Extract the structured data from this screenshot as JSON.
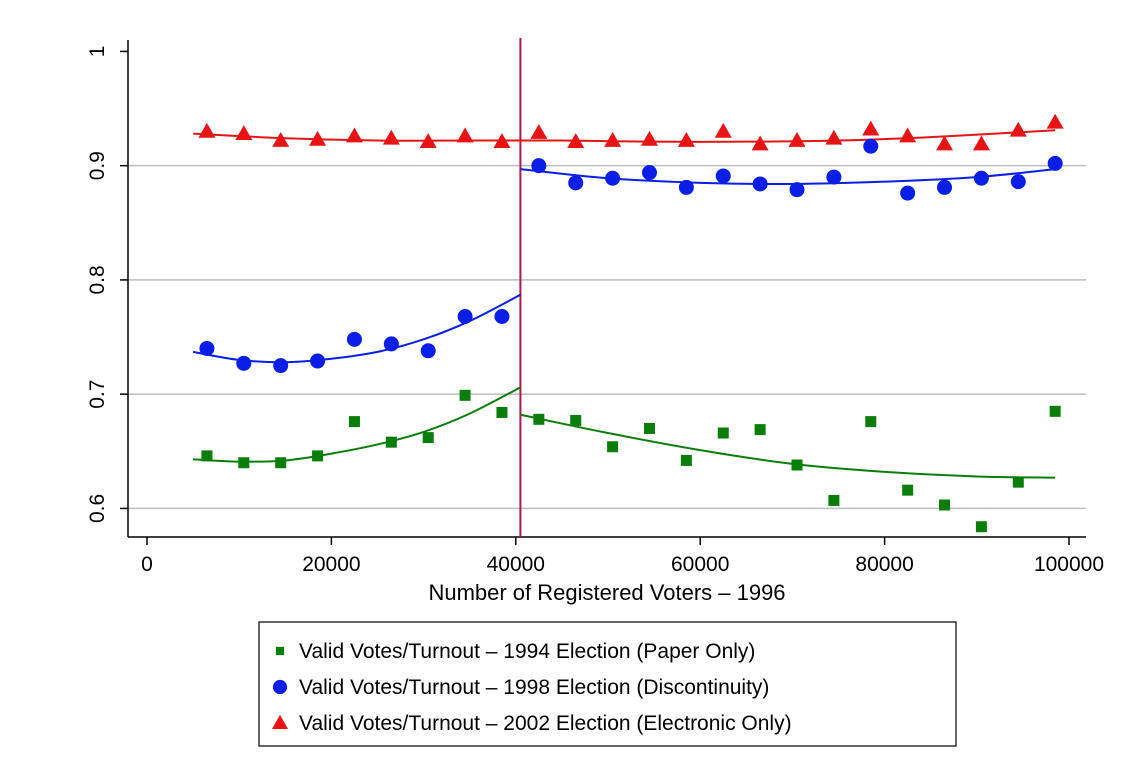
{
  "chart_data": {
    "type": "scatter",
    "title": "",
    "xlabel": "Number of Registered Voters – 1996",
    "ylabel": "",
    "xlim": [
      0,
      100000
    ],
    "ylim": [
      0.575,
      1.01
    ],
    "x_ticks": [
      0,
      20000,
      40000,
      60000,
      80000,
      100000
    ],
    "x_tick_labels": [
      "0",
      "20000",
      "40000",
      "60000",
      "80000",
      "100000"
    ],
    "y_ticks": [
      0.6,
      0.7,
      0.8,
      0.9,
      1
    ],
    "y_tick_labels": [
      "0.6",
      "0.7",
      "0.8",
      "0.9",
      "1"
    ],
    "grid": "horizontal",
    "cutoff_x": 40500,
    "legend_position": "bottom",
    "series": [
      {
        "name": "Valid Votes/Turnout – 1994 Election (Paper Only)",
        "color": "#0a7d0a",
        "marker": "square",
        "x": [
          6500,
          10500,
          14500,
          18500,
          22500,
          26500,
          30500,
          34500,
          38500,
          42500,
          46500,
          50500,
          54500,
          58500,
          62500,
          66500,
          70500,
          74500,
          78500,
          82500,
          86500,
          90500,
          94500,
          98500
        ],
        "y": [
          0.646,
          0.64,
          0.64,
          0.646,
          0.676,
          0.658,
          0.662,
          0.699,
          0.684,
          0.678,
          0.677,
          0.654,
          0.67,
          0.642,
          0.666,
          0.669,
          0.638,
          0.607,
          0.676,
          0.616,
          0.603,
          0.584,
          0.623,
          0.685
        ],
        "fit": [
          {
            "x": [
              5000,
              10000,
              15000,
              20000,
              25000,
              30000,
              35000,
              40500
            ],
            "y": [
              0.643,
              0.641,
              0.642,
              0.648,
              0.656,
              0.667,
              0.683,
              0.706
            ]
          },
          {
            "x": [
              40500,
              50000,
              60000,
              70000,
              80000,
              90000,
              98500
            ],
            "y": [
              0.682,
              0.666,
              0.651,
              0.639,
              0.632,
              0.628,
              0.627
            ]
          }
        ]
      },
      {
        "name": "Valid Votes/Turnout – 1998 Election (Discontinuity)",
        "color": "#0a1ee6",
        "marker": "circle",
        "x": [
          6500,
          10500,
          14500,
          18500,
          22500,
          26500,
          30500,
          34500,
          38500,
          42500,
          46500,
          50500,
          54500,
          58500,
          62500,
          66500,
          70500,
          74500,
          78500,
          82500,
          86500,
          90500,
          94500,
          98500
        ],
        "y": [
          0.74,
          0.727,
          0.725,
          0.729,
          0.748,
          0.744,
          0.738,
          0.768,
          0.768,
          0.9,
          0.885,
          0.889,
          0.894,
          0.881,
          0.891,
          0.884,
          0.879,
          0.89,
          0.917,
          0.876,
          0.881,
          0.889,
          0.886,
          0.902
        ],
        "fit": [
          {
            "x": [
              5000,
              10000,
              15000,
              20000,
              25000,
              30000,
              35000,
              40500
            ],
            "y": [
              0.737,
              0.73,
              0.728,
              0.731,
              0.737,
              0.748,
              0.764,
              0.787
            ]
          },
          {
            "x": [
              40500,
              50000,
              60000,
              70000,
              80000,
              90000,
              98500
            ],
            "y": [
              0.897,
              0.889,
              0.885,
              0.884,
              0.886,
              0.89,
              0.897
            ]
          }
        ]
      },
      {
        "name": "Valid Votes/Turnout – 2002 Election (Electronic Only)",
        "color": "#e61414",
        "marker": "triangle",
        "x": [
          6500,
          10500,
          14500,
          18500,
          22500,
          26500,
          30500,
          34500,
          38500,
          42500,
          46500,
          50500,
          54500,
          58500,
          62500,
          66500,
          70500,
          74500,
          78500,
          82500,
          86500,
          90500,
          94500,
          98500
        ],
        "y": [
          0.93,
          0.928,
          0.922,
          0.923,
          0.926,
          0.924,
          0.921,
          0.926,
          0.921,
          0.929,
          0.921,
          0.922,
          0.923,
          0.922,
          0.93,
          0.919,
          0.922,
          0.924,
          0.932,
          0.926,
          0.919,
          0.919,
          0.931,
          0.938
        ]
      }
    ],
    "series_2002_fit": {
      "x": [
        5000,
        15000,
        25000,
        35000,
        45000,
        55000,
        65000,
        75000,
        85000,
        98500
      ],
      "y": [
        0.928,
        0.924,
        0.922,
        0.922,
        0.922,
        0.921,
        0.921,
        0.922,
        0.925,
        0.931
      ]
    }
  }
}
